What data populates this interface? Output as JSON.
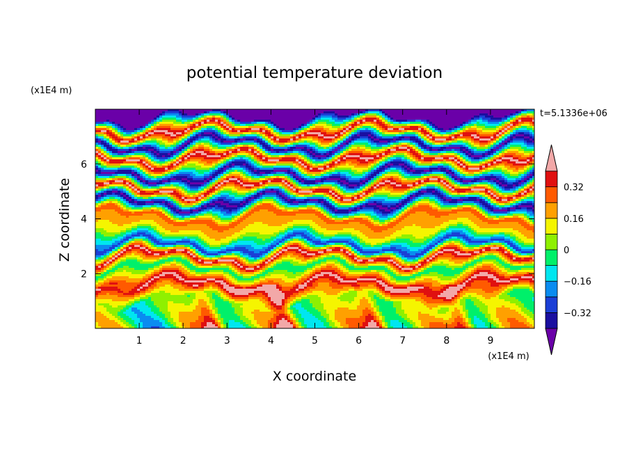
{
  "chart_data": {
    "type": "heatmap",
    "title": "potential temperature deviation",
    "xlabel": "X coordinate",
    "ylabel": "Z coordinate",
    "x_unit": "(x1E4 m)",
    "y_unit": "(x1E4 m)",
    "time_label": "t=5.1336e+06",
    "xlim": [
      0,
      10
    ],
    "ylim": [
      0,
      8
    ],
    "x_ticks": [
      1,
      2,
      3,
      4,
      5,
      6,
      7,
      8,
      9
    ],
    "x_tick_labels": [
      "1",
      "2",
      "3",
      "4",
      "5",
      "6",
      "7",
      "8",
      "9"
    ],
    "y_ticks": [
      2,
      4,
      6
    ],
    "y_tick_labels": [
      "2",
      "4",
      "6"
    ],
    "colorbar": {
      "levels": [
        -0.4,
        -0.32,
        -0.24,
        -0.16,
        -0.08,
        0,
        0.08,
        0.16,
        0.24,
        0.32,
        0.4
      ],
      "colors": [
        "#6a00a8",
        "#1a0fa0",
        "#1b3fd6",
        "#0a8cf0",
        "#00e6f0",
        "#00f06a",
        "#8ef000",
        "#f5f500",
        "#ffa000",
        "#ff5a00",
        "#e01010",
        "#f2a8a8"
      ],
      "labels": [
        "0.32",
        "0.16",
        "0",
        "−0.16",
        "−0.32"
      ],
      "label_values": [
        0.32,
        0.16,
        0,
        -0.16,
        -0.32
      ]
    },
    "field_profile": [
      {
        "z": 0.3,
        "value": 0.08
      },
      {
        "z": 1.0,
        "value": 0.0
      },
      {
        "z": 1.6,
        "value": 0.44
      },
      {
        "z": 2.2,
        "value": -0.08
      },
      {
        "z": 2.6,
        "value": 0.44
      },
      {
        "z": 3.0,
        "value": -0.3
      },
      {
        "z": 3.5,
        "value": 0.12
      },
      {
        "z": 4.1,
        "value": 0.28
      },
      {
        "z": 4.6,
        "value": -0.44
      },
      {
        "z": 5.1,
        "value": 0.44
      },
      {
        "z": 5.6,
        "value": -0.44
      },
      {
        "z": 6.2,
        "value": 0.44
      },
      {
        "z": 6.7,
        "value": -0.44
      },
      {
        "z": 7.2,
        "value": 0.44
      },
      {
        "z": 7.7,
        "value": -0.44
      }
    ]
  }
}
